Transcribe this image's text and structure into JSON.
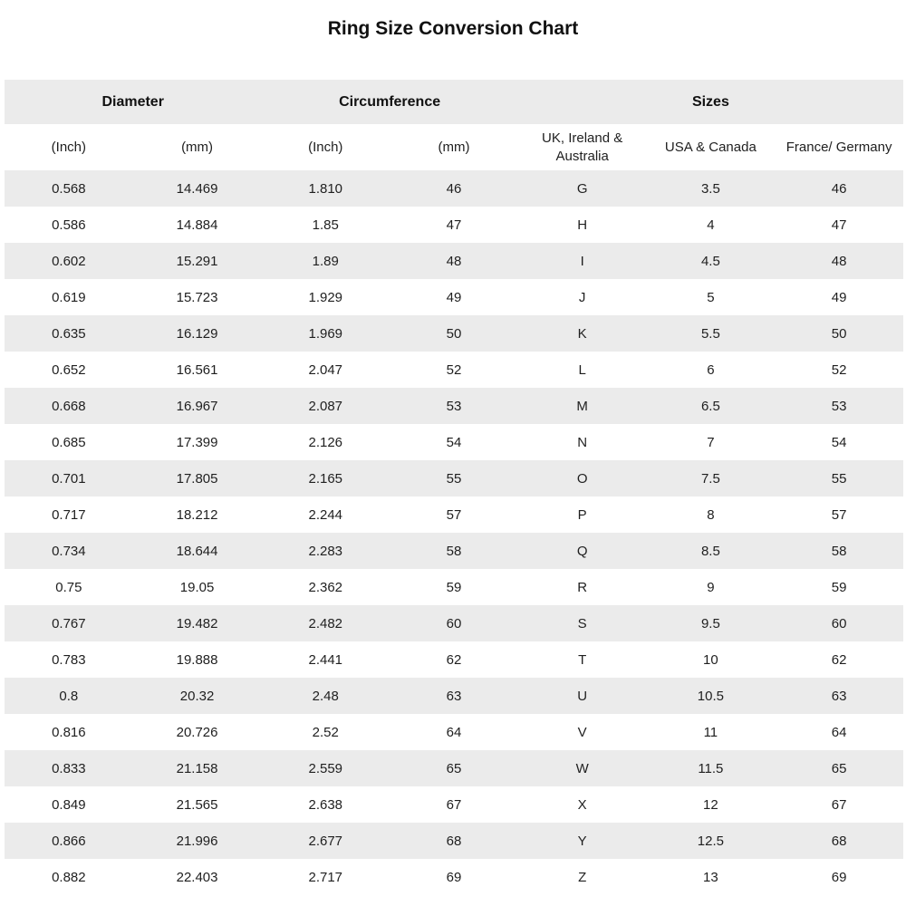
{
  "title": "Ring Size Conversion Chart",
  "colors": {
    "stripe": "#ebebeb",
    "background": "#ffffff",
    "text": "#1f1f1f"
  },
  "chart_data": {
    "type": "table",
    "title": "Ring Size Conversion Chart",
    "groups": [
      {
        "label": "Diameter",
        "span": 2
      },
      {
        "label": "Circumference",
        "span": 2
      },
      {
        "label": "Sizes",
        "span": 3
      }
    ],
    "columns": [
      "(Inch)",
      "(mm)",
      "(Inch)",
      "(mm)",
      "UK, Ireland & Australia",
      "USA & Canada",
      "France/ Germany"
    ],
    "rows": [
      [
        "0.568",
        "14.469",
        "1.810",
        "46",
        "G",
        "3.5",
        "46"
      ],
      [
        "0.586",
        "14.884",
        "1.85",
        "47",
        "H",
        "4",
        "47"
      ],
      [
        "0.602",
        "15.291",
        "1.89",
        "48",
        "I",
        "4.5",
        "48"
      ],
      [
        "0.619",
        "15.723",
        "1.929",
        "49",
        "J",
        "5",
        "49"
      ],
      [
        "0.635",
        "16.129",
        "1.969",
        "50",
        "K",
        "5.5",
        "50"
      ],
      [
        "0.652",
        "16.561",
        "2.047",
        "52",
        "L",
        "6",
        "52"
      ],
      [
        "0.668",
        "16.967",
        "2.087",
        "53",
        "M",
        "6.5",
        "53"
      ],
      [
        "0.685",
        "17.399",
        "2.126",
        "54",
        "N",
        "7",
        "54"
      ],
      [
        "0.701",
        "17.805",
        "2.165",
        "55",
        "O",
        "7.5",
        "55"
      ],
      [
        "0.717",
        "18.212",
        "2.244",
        "57",
        "P",
        "8",
        "57"
      ],
      [
        "0.734",
        "18.644",
        "2.283",
        "58",
        "Q",
        "8.5",
        "58"
      ],
      [
        "0.75",
        "19.05",
        "2.362",
        "59",
        "R",
        "9",
        "59"
      ],
      [
        "0.767",
        "19.482",
        "2.482",
        "60",
        "S",
        "9.5",
        "60"
      ],
      [
        "0.783",
        "19.888",
        "2.441",
        "62",
        "T",
        "10",
        "62"
      ],
      [
        "0.8",
        "20.32",
        "2.48",
        "63",
        "U",
        "10.5",
        "63"
      ],
      [
        "0.816",
        "20.726",
        "2.52",
        "64",
        "V",
        "11",
        "64"
      ],
      [
        "0.833",
        "21.158",
        "2.559",
        "65",
        "W",
        "11.5",
        "65"
      ],
      [
        "0.849",
        "21.565",
        "2.638",
        "67",
        "X",
        "12",
        "67"
      ],
      [
        "0.866",
        "21.996",
        "2.677",
        "68",
        "Y",
        "12.5",
        "68"
      ],
      [
        "0.882",
        "22.403",
        "2.717",
        "69",
        "Z",
        "13",
        "69"
      ]
    ]
  }
}
